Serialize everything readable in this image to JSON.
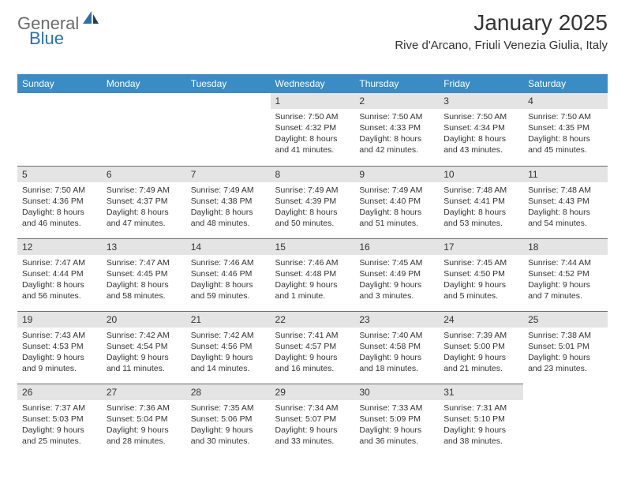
{
  "brand": {
    "general": "General",
    "blue": "Blue"
  },
  "title": "January 2025",
  "location": "Rive d'Arcano, Friuli Venezia Giulia, Italy",
  "colors": {
    "header_bg": "#3b8bc4",
    "header_text": "#ffffff",
    "daynum_bg": "#e4e4e4",
    "rule": "#6b6b6b",
    "text": "#333333",
    "logo_gray": "#6b6b6b",
    "logo_blue": "#2f6fa8"
  },
  "weekdays": [
    "Sunday",
    "Monday",
    "Tuesday",
    "Wednesday",
    "Thursday",
    "Friday",
    "Saturday"
  ],
  "weeks": [
    [
      null,
      null,
      null,
      {
        "n": "1",
        "sunrise": "7:50 AM",
        "sunset": "4:32 PM",
        "daylight": "8 hours and 41 minutes."
      },
      {
        "n": "2",
        "sunrise": "7:50 AM",
        "sunset": "4:33 PM",
        "daylight": "8 hours and 42 minutes."
      },
      {
        "n": "3",
        "sunrise": "7:50 AM",
        "sunset": "4:34 PM",
        "daylight": "8 hours and 43 minutes."
      },
      {
        "n": "4",
        "sunrise": "7:50 AM",
        "sunset": "4:35 PM",
        "daylight": "8 hours and 45 minutes."
      }
    ],
    [
      {
        "n": "5",
        "sunrise": "7:50 AM",
        "sunset": "4:36 PM",
        "daylight": "8 hours and 46 minutes."
      },
      {
        "n": "6",
        "sunrise": "7:49 AM",
        "sunset": "4:37 PM",
        "daylight": "8 hours and 47 minutes."
      },
      {
        "n": "7",
        "sunrise": "7:49 AM",
        "sunset": "4:38 PM",
        "daylight": "8 hours and 48 minutes."
      },
      {
        "n": "8",
        "sunrise": "7:49 AM",
        "sunset": "4:39 PM",
        "daylight": "8 hours and 50 minutes."
      },
      {
        "n": "9",
        "sunrise": "7:49 AM",
        "sunset": "4:40 PM",
        "daylight": "8 hours and 51 minutes."
      },
      {
        "n": "10",
        "sunrise": "7:48 AM",
        "sunset": "4:41 PM",
        "daylight": "8 hours and 53 minutes."
      },
      {
        "n": "11",
        "sunrise": "7:48 AM",
        "sunset": "4:43 PM",
        "daylight": "8 hours and 54 minutes."
      }
    ],
    [
      {
        "n": "12",
        "sunrise": "7:47 AM",
        "sunset": "4:44 PM",
        "daylight": "8 hours and 56 minutes."
      },
      {
        "n": "13",
        "sunrise": "7:47 AM",
        "sunset": "4:45 PM",
        "daylight": "8 hours and 58 minutes."
      },
      {
        "n": "14",
        "sunrise": "7:46 AM",
        "sunset": "4:46 PM",
        "daylight": "8 hours and 59 minutes."
      },
      {
        "n": "15",
        "sunrise": "7:46 AM",
        "sunset": "4:48 PM",
        "daylight": "9 hours and 1 minute."
      },
      {
        "n": "16",
        "sunrise": "7:45 AM",
        "sunset": "4:49 PM",
        "daylight": "9 hours and 3 minutes."
      },
      {
        "n": "17",
        "sunrise": "7:45 AM",
        "sunset": "4:50 PM",
        "daylight": "9 hours and 5 minutes."
      },
      {
        "n": "18",
        "sunrise": "7:44 AM",
        "sunset": "4:52 PM",
        "daylight": "9 hours and 7 minutes."
      }
    ],
    [
      {
        "n": "19",
        "sunrise": "7:43 AM",
        "sunset": "4:53 PM",
        "daylight": "9 hours and 9 minutes."
      },
      {
        "n": "20",
        "sunrise": "7:42 AM",
        "sunset": "4:54 PM",
        "daylight": "9 hours and 11 minutes."
      },
      {
        "n": "21",
        "sunrise": "7:42 AM",
        "sunset": "4:56 PM",
        "daylight": "9 hours and 14 minutes."
      },
      {
        "n": "22",
        "sunrise": "7:41 AM",
        "sunset": "4:57 PM",
        "daylight": "9 hours and 16 minutes."
      },
      {
        "n": "23",
        "sunrise": "7:40 AM",
        "sunset": "4:58 PM",
        "daylight": "9 hours and 18 minutes."
      },
      {
        "n": "24",
        "sunrise": "7:39 AM",
        "sunset": "5:00 PM",
        "daylight": "9 hours and 21 minutes."
      },
      {
        "n": "25",
        "sunrise": "7:38 AM",
        "sunset": "5:01 PM",
        "daylight": "9 hours and 23 minutes."
      }
    ],
    [
      {
        "n": "26",
        "sunrise": "7:37 AM",
        "sunset": "5:03 PM",
        "daylight": "9 hours and 25 minutes."
      },
      {
        "n": "27",
        "sunrise": "7:36 AM",
        "sunset": "5:04 PM",
        "daylight": "9 hours and 28 minutes."
      },
      {
        "n": "28",
        "sunrise": "7:35 AM",
        "sunset": "5:06 PM",
        "daylight": "9 hours and 30 minutes."
      },
      {
        "n": "29",
        "sunrise": "7:34 AM",
        "sunset": "5:07 PM",
        "daylight": "9 hours and 33 minutes."
      },
      {
        "n": "30",
        "sunrise": "7:33 AM",
        "sunset": "5:09 PM",
        "daylight": "9 hours and 36 minutes."
      },
      {
        "n": "31",
        "sunrise": "7:31 AM",
        "sunset": "5:10 PM",
        "daylight": "9 hours and 38 minutes."
      },
      null
    ]
  ],
  "labels": {
    "sunrise": "Sunrise:",
    "sunset": "Sunset:",
    "daylight": "Daylight:"
  }
}
